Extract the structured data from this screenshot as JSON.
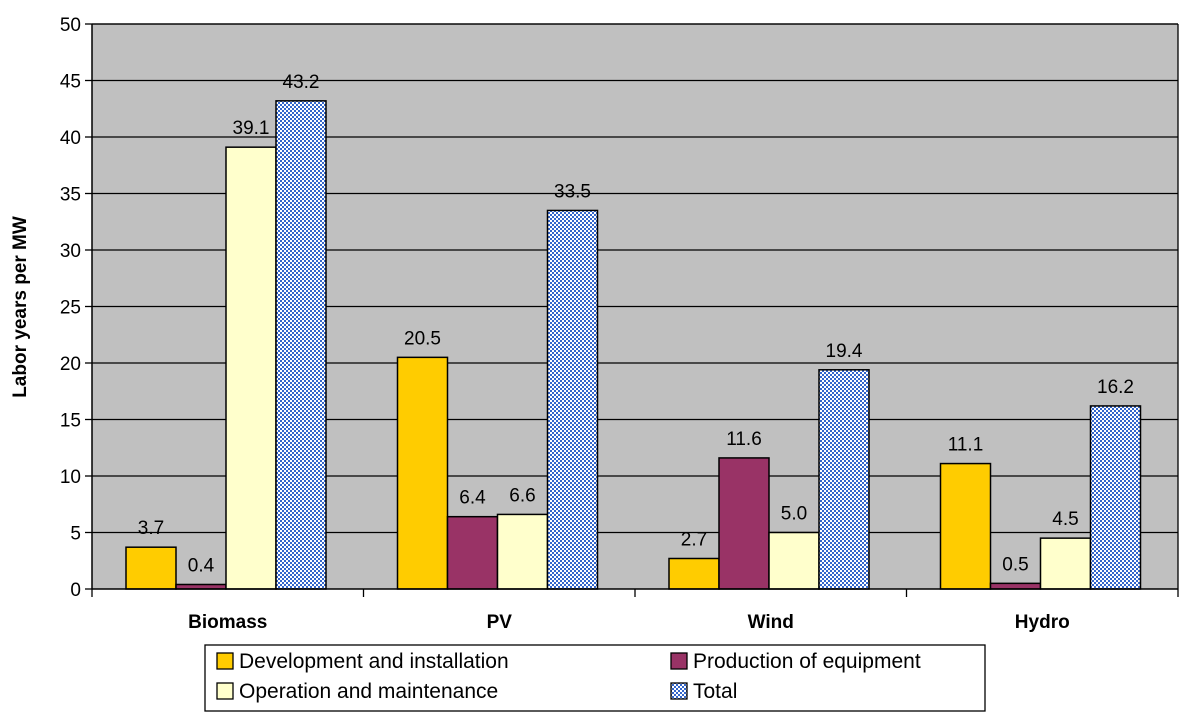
{
  "chart_data": {
    "type": "bar",
    "title": "",
    "xlabel": "",
    "ylabel": "Labor years per MW",
    "ylim": [
      0,
      50
    ],
    "yticks": [
      0,
      5,
      10,
      15,
      20,
      25,
      30,
      35,
      40,
      45,
      50
    ],
    "grid": true,
    "legend_position": "bottom",
    "categories": [
      "Biomass",
      "PV",
      "Wind",
      "Hydro"
    ],
    "series": [
      {
        "name": "Development and installation",
        "values": [
          3.7,
          20.5,
          2.7,
          11.1
        ],
        "labels": [
          "3.7",
          "20.5",
          "2.7",
          "11.1"
        ],
        "color": "#ffcc00",
        "pattern": "solid"
      },
      {
        "name": "Production of equipment",
        "values": [
          0.4,
          6.4,
          11.6,
          0.5
        ],
        "labels": [
          "0.4",
          "6.4",
          "11.6",
          "0.5"
        ],
        "color": "#993366",
        "pattern": "solid"
      },
      {
        "name": "Operation and maintenance",
        "values": [
          39.1,
          6.6,
          5.0,
          4.5
        ],
        "labels": [
          "39.1",
          "6.6",
          "5.0",
          "4.5"
        ],
        "color": "#ffffcc",
        "pattern": "solid"
      },
      {
        "name": "Total",
        "values": [
          43.2,
          33.5,
          19.4,
          16.2
        ],
        "labels": [
          "43.2",
          "33.5",
          "19.4",
          "16.2"
        ],
        "color": "#3366cc",
        "pattern": "crosshatch"
      }
    ],
    "colors": {
      "plot_background": "#c0c0c0",
      "gridline": "#000000",
      "bar_outline": "#000000"
    }
  }
}
